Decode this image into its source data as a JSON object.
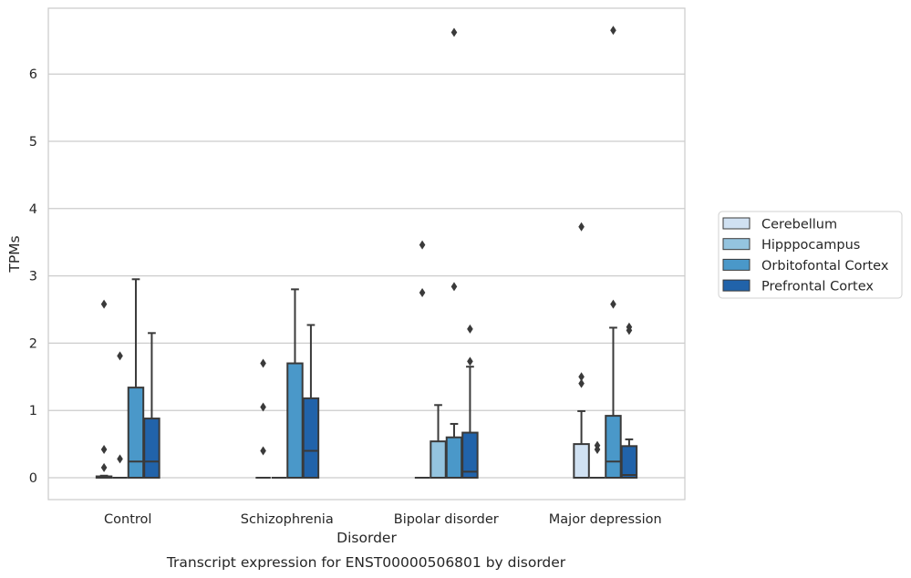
{
  "chart_data": {
    "type": "boxplot",
    "title": "",
    "caption": "Transcript expression for ENST00000506801 by disorder",
    "xlabel": "Disorder",
    "ylabel": "TPMs",
    "ylim": [
      -0.32,
      7.0
    ],
    "yticks": [
      0,
      1,
      2,
      3,
      4,
      5,
      6
    ],
    "grid": "horizontal",
    "legend_position": "right",
    "categories": [
      "Control",
      "Schizophrenia",
      "Bipolar disorder",
      "Major depression"
    ],
    "series": [
      {
        "name": "Cerebellum",
        "color": "#d0e1f2",
        "boxes": [
          {
            "q1": 0,
            "median": 0,
            "q3": 0.02,
            "whisker_low": 0,
            "whisker_high": 0.03,
            "outliers": [
              0.15,
              0.42,
              2.58
            ]
          },
          {
            "q1": 0,
            "median": 0,
            "q3": 0,
            "whisker_low": 0,
            "whisker_high": 0,
            "outliers": [
              0.4,
              1.05,
              1.7
            ]
          },
          {
            "q1": 0,
            "median": 0,
            "q3": 0,
            "whisker_low": 0,
            "whisker_high": 0,
            "outliers": [
              2.75,
              3.46
            ]
          },
          {
            "q1": 0,
            "median": 0,
            "q3": 0.5,
            "whisker_low": 0,
            "whisker_high": 0.99,
            "outliers": [
              1.4,
              1.5,
              3.73
            ]
          }
        ]
      },
      {
        "name": "Hipppocampus",
        "color": "#94c4df",
        "boxes": [
          {
            "q1": 0,
            "median": 0,
            "q3": 0,
            "whisker_low": 0,
            "whisker_high": 0,
            "outliers": [
              0.28,
              1.81
            ]
          },
          {
            "q1": 0,
            "median": 0,
            "q3": 0,
            "whisker_low": 0,
            "whisker_high": 0,
            "outliers": []
          },
          {
            "q1": 0,
            "median": 0,
            "q3": 0.54,
            "whisker_low": 0,
            "whisker_high": 1.08,
            "outliers": []
          },
          {
            "q1": 0,
            "median": 0,
            "q3": 0,
            "whisker_low": 0,
            "whisker_high": 0,
            "outliers": [
              0.42,
              0.48
            ]
          }
        ]
      },
      {
        "name": "Orbitofontal Cortex",
        "color": "#4a98c9",
        "boxes": [
          {
            "q1": 0,
            "median": 0.24,
            "q3": 1.34,
            "whisker_low": 0,
            "whisker_high": 2.95,
            "outliers": []
          },
          {
            "q1": 0,
            "median": 0,
            "q3": 1.7,
            "whisker_low": 0,
            "whisker_high": 2.8,
            "outliers": []
          },
          {
            "q1": 0,
            "median": 0,
            "q3": 0.6,
            "whisker_low": 0,
            "whisker_high": 0.8,
            "outliers": [
              2.84,
              6.62
            ]
          },
          {
            "q1": 0,
            "median": 0.24,
            "q3": 0.92,
            "whisker_low": 0,
            "whisker_high": 2.23,
            "outliers": [
              2.58,
              6.65
            ]
          }
        ]
      },
      {
        "name": "Prefrontal Cortex",
        "color": "#2163aa",
        "boxes": [
          {
            "q1": 0,
            "median": 0.24,
            "q3": 0.88,
            "whisker_low": 0,
            "whisker_high": 2.15,
            "outliers": []
          },
          {
            "q1": 0,
            "median": 0.4,
            "q3": 1.18,
            "whisker_low": 0,
            "whisker_high": 2.27,
            "outliers": []
          },
          {
            "q1": 0,
            "median": 0.09,
            "q3": 0.67,
            "whisker_low": 0,
            "whisker_high": 1.65,
            "outliers": [
              1.73,
              2.21
            ]
          },
          {
            "q1": 0,
            "median": 0.04,
            "q3": 0.47,
            "whisker_low": 0,
            "whisker_high": 0.57,
            "outliers": [
              2.19,
              2.24
            ]
          }
        ]
      }
    ]
  }
}
